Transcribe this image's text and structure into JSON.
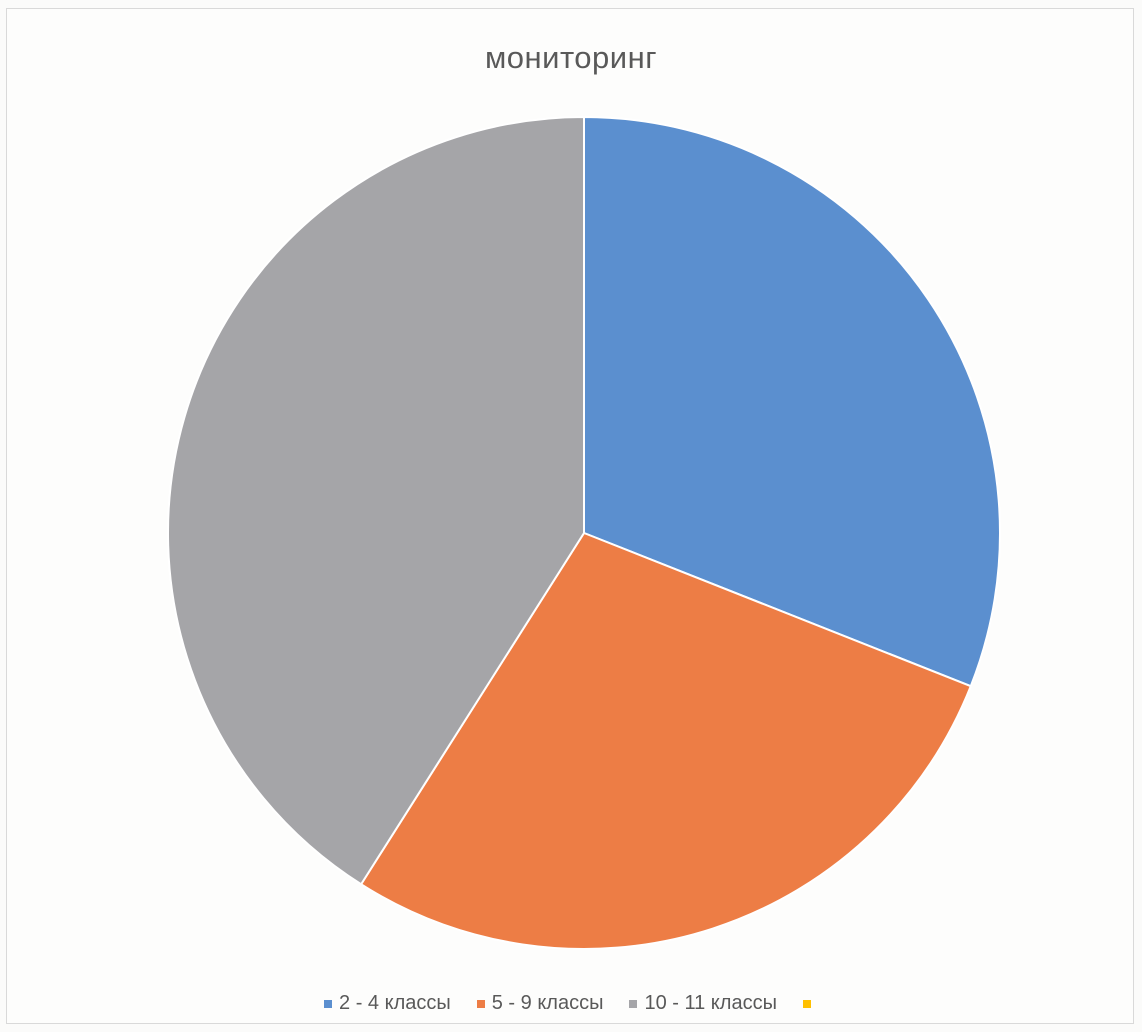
{
  "chart_data": {
    "type": "pie",
    "title": "мониторинг",
    "categories": [
      "2 - 4 классы",
      "5 - 9 классы",
      "10 - 11 классы",
      ""
    ],
    "values": [
      31,
      28,
      41,
      0
    ],
    "colors": [
      "#5b8fcf",
      "#ed7d45",
      "#a5a5a8",
      "#ffc000"
    ],
    "legend_position": "bottom",
    "start_angle": "top, clockwise"
  }
}
